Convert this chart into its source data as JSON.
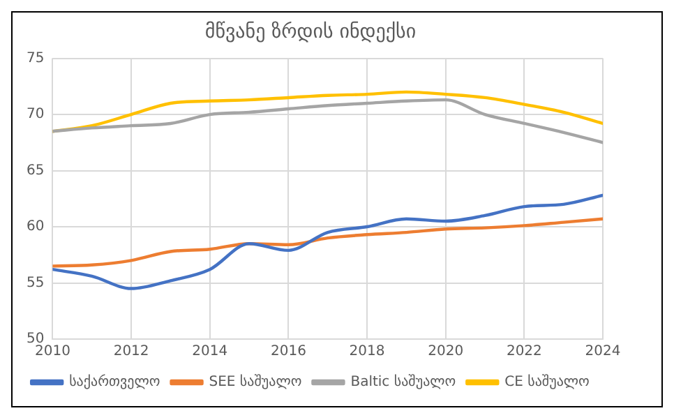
{
  "chart_data": {
    "type": "line",
    "title": "მწვანე ზრდის ინდექსი",
    "x": [
      2010,
      2011,
      2012,
      2013,
      2014,
      2015,
      2016,
      2017,
      2018,
      2019,
      2020,
      2021,
      2022,
      2023,
      2024
    ],
    "xlim": [
      2010,
      2024
    ],
    "xticks": [
      2010,
      2012,
      2014,
      2016,
      2018,
      2020,
      2022,
      2024
    ],
    "ylim": [
      50,
      75
    ],
    "yticks": [
      50,
      55,
      60,
      65,
      70,
      75
    ],
    "grid": true,
    "legend": "bottom",
    "marker": "none",
    "line_style": "solid",
    "series": [
      {
        "name": "საქართველო",
        "color": "#4472c4",
        "values": [
          56.2,
          55.6,
          54.5,
          55.2,
          56.2,
          58.5,
          57.9,
          59.5,
          60.0,
          60.7,
          60.5,
          61.0,
          61.8,
          62.0,
          62.8
        ]
      },
      {
        "name": "SEE საშუალო",
        "color": "#ed7d31",
        "values": [
          56.5,
          56.6,
          57.0,
          57.8,
          58.0,
          58.5,
          58.4,
          59.0,
          59.3,
          59.5,
          59.8,
          59.9,
          60.1,
          60.4,
          60.7
        ]
      },
      {
        "name": "Baltic საშუალო",
        "color": "#a5a5a5",
        "values": [
          68.5,
          68.8,
          69.0,
          69.2,
          70.0,
          70.2,
          70.5,
          70.8,
          71.0,
          71.2,
          71.3,
          70.0,
          69.2,
          68.4,
          67.5
        ]
      },
      {
        "name": "CE საშუალო",
        "color": "#ffc000",
        "values": [
          68.5,
          69.0,
          70.0,
          71.0,
          71.2,
          71.3,
          71.5,
          71.7,
          71.8,
          72.0,
          71.8,
          71.5,
          70.9,
          70.2,
          69.2
        ]
      }
    ]
  }
}
